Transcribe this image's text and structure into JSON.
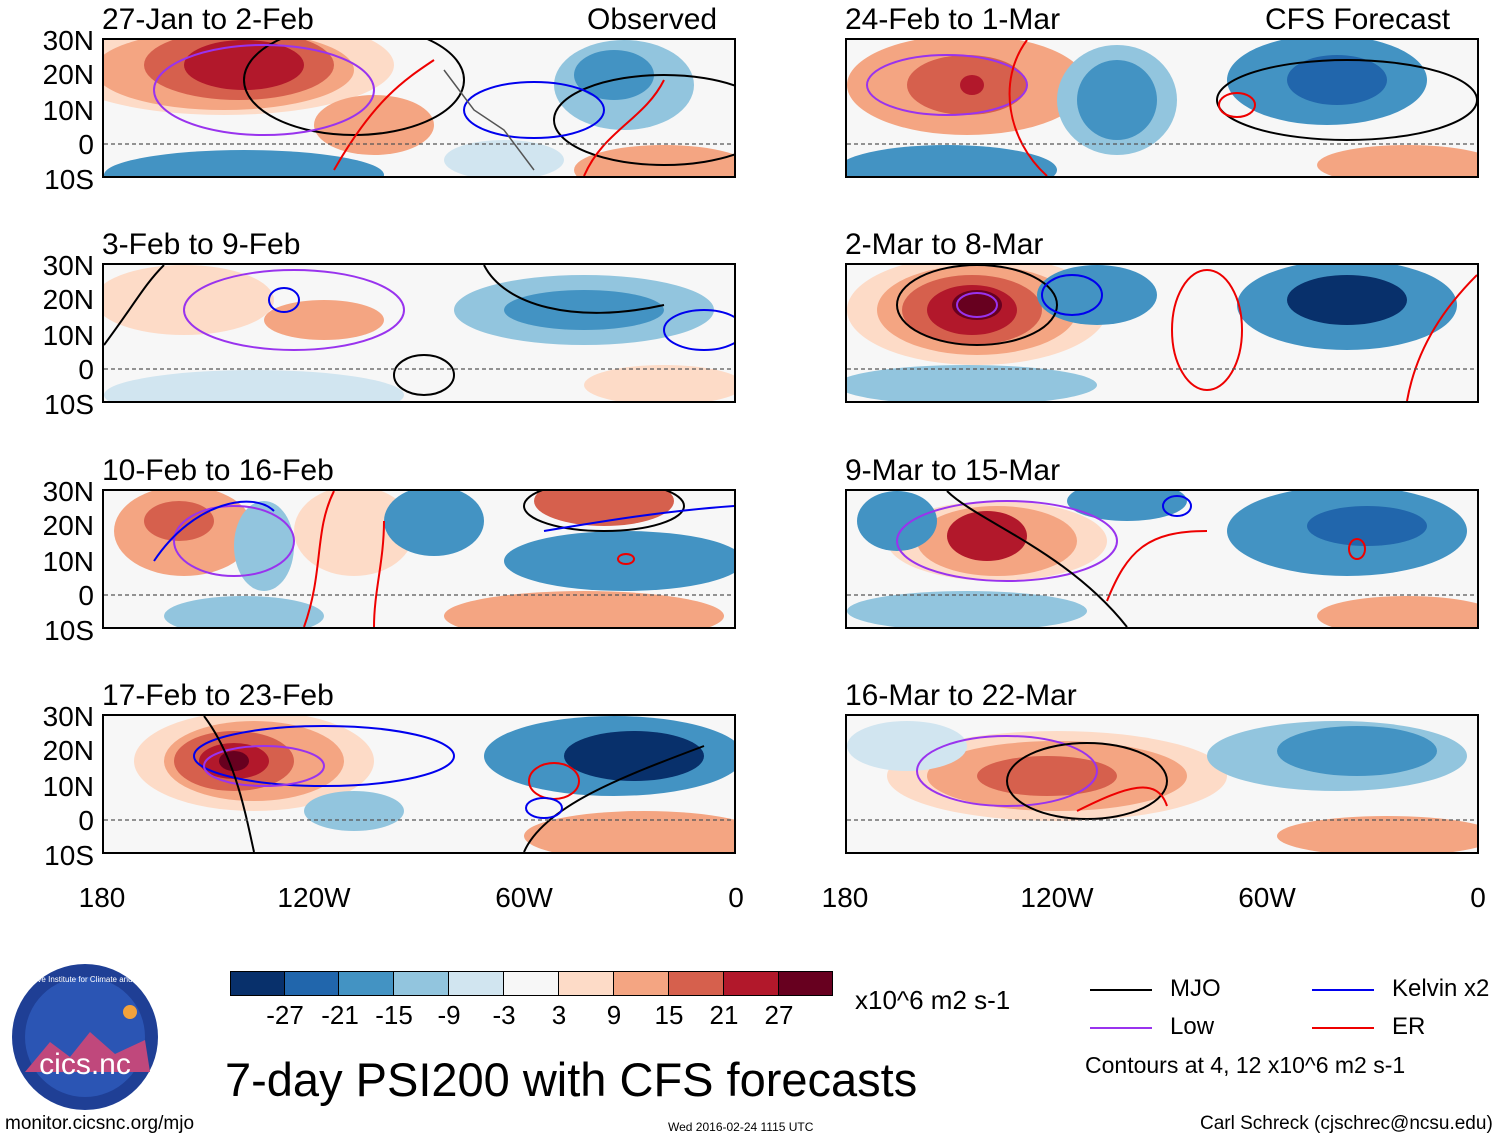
{
  "headings": {
    "observed": "Observed",
    "forecast": "CFS Forecast"
  },
  "panels": [
    {
      "title": "27-Jan to 2-Feb"
    },
    {
      "title": "3-Feb to 9-Feb"
    },
    {
      "title": "10-Feb to 16-Feb"
    },
    {
      "title": "17-Feb to 23-Feb"
    },
    {
      "title": "24-Feb to 1-Mar"
    },
    {
      "title": "2-Mar to 8-Mar"
    },
    {
      "title": "9-Mar to 15-Mar"
    },
    {
      "title": "16-Mar to 22-Mar"
    }
  ],
  "lat_labels": [
    "30N",
    "20N",
    "10N",
    "0",
    "10S"
  ],
  "lon_labels": [
    "180",
    "120W",
    "60W",
    "0"
  ],
  "colorbar": {
    "labels": [
      "-27",
      "-21",
      "-15",
      "-9",
      "-3",
      "3",
      "9",
      "15",
      "21",
      "27"
    ],
    "colors": [
      "#08306b",
      "#2166ac",
      "#4393c3",
      "#92c5de",
      "#d1e5f0",
      "#f7f7f7",
      "#fddbc7",
      "#f4a582",
      "#d6604d",
      "#b2182b",
      "#67001f"
    ],
    "units": "x10^6 m2 s-1"
  },
  "legend": {
    "items": [
      {
        "label": "MJO",
        "color": "#000000"
      },
      {
        "label": "Kelvin x2",
        "color": "#0000ee"
      },
      {
        "label": "Low",
        "color": "#9933ee"
      },
      {
        "label": "ER",
        "color": "#ee0000"
      }
    ],
    "contours_note": "Contours at 4, 12 x10^6 m2 s-1"
  },
  "footer": {
    "main_title": "7-day PSI200 with CFS forecasts",
    "url": "monitor.cicsnc.org/mjo",
    "timestamp": "Wed 2016-02-24 1115 UTC",
    "author": "Carl Schreck (cjschrec@ncsu.edu)",
    "logo_text": "cics.nc",
    "logo_ring_text": "Cooperative Institute for Climate and Satellites"
  }
}
